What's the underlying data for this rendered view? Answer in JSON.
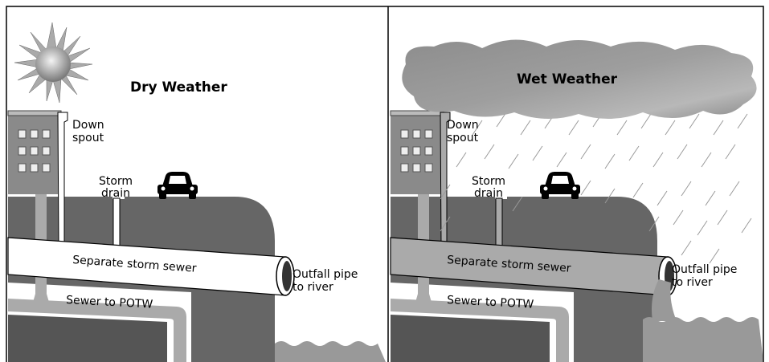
{
  "panels": [
    {
      "title": "Dry Weather",
      "labels": {
        "downspout": [
          "Down",
          "spout"
        ],
        "storm_drain": [
          "Storm",
          "drain"
        ],
        "storm_sewer": "Separate storm sewer",
        "outfall": [
          "Outfall pipe",
          "to river"
        ],
        "sanitary": "Sewer to POTW"
      }
    },
    {
      "title": "Wet Weather",
      "labels": {
        "downspout": [
          "Down",
          "spout"
        ],
        "storm_drain": [
          "Storm",
          "drain"
        ],
        "storm_sewer": "Separate storm sewer",
        "outfall": [
          "Outfall pipe",
          "to river"
        ],
        "sanitary": "Sewer to POTW"
      }
    }
  ]
}
